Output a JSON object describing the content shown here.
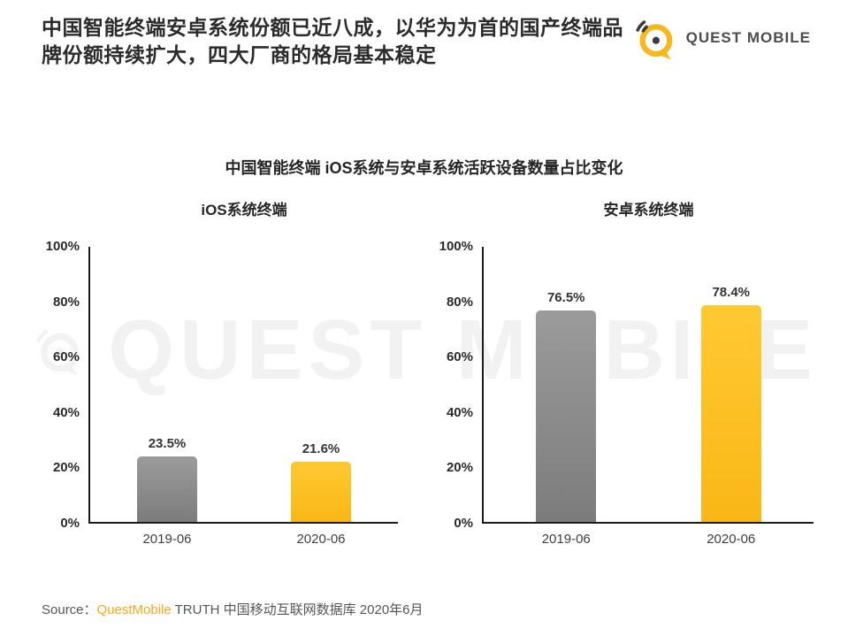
{
  "header": {
    "title_line1": "中国智能终端安卓系统份额已近八成，以华为为首的国产终端品",
    "title_line2": "牌份额持续扩大，四大厂商的格局基本稳定",
    "logo_text": "QUEST MOBILE"
  },
  "chart_section": {
    "title": "中国智能终端 iOS系统与安卓系统活跃设备数量占比变化"
  },
  "chart_data": [
    {
      "type": "bar",
      "title": "iOS系统终端",
      "categories": [
        "2019-06",
        "2020-06"
      ],
      "values": [
        23.5,
        21.6
      ],
      "value_labels": [
        "23.5%",
        "21.6%"
      ],
      "bar_styles": [
        "gray",
        "yellow"
      ],
      "bar_colors": [
        "#8e8e8e",
        "#fdc32b"
      ],
      "ylim": [
        0,
        100
      ],
      "yticks": [
        "100%",
        "80%",
        "60%",
        "40%",
        "20%",
        "0%"
      ],
      "grid": "off",
      "legend": "none"
    },
    {
      "type": "bar",
      "title": "安卓系统终端",
      "categories": [
        "2019-06",
        "2020-06"
      ],
      "values": [
        76.5,
        78.4
      ],
      "value_labels": [
        "76.5%",
        "78.4%"
      ],
      "bar_styles": [
        "gray",
        "yellow"
      ],
      "bar_colors": [
        "#8e8e8e",
        "#fdc32b"
      ],
      "ylim": [
        0,
        100
      ],
      "yticks": [
        "100%",
        "80%",
        "60%",
        "40%",
        "20%",
        "0%"
      ],
      "grid": "off",
      "legend": "none"
    }
  ],
  "watermark": {
    "text": "QUEST MOBILE"
  },
  "footer": {
    "source_prefix": "Source：",
    "source_brand": "QuestMobile",
    "source_suffix": " TRUTH 中国移动互联网数据库 2020年6月"
  },
  "colors": {
    "accent_yellow": "#fdc32b",
    "bar_gray": "#8e8e8e",
    "logo_yellow": "#f5b91e",
    "title_text": "#2b2b2b",
    "watermark": "#f2f2f2",
    "source_brand": "#f5a81d"
  }
}
